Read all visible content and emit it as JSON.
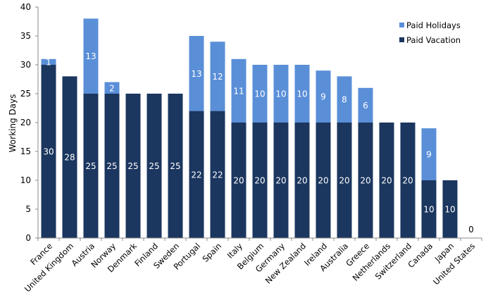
{
  "chart_data": {
    "type": "bar",
    "stacked": true,
    "ylabel": "Working Days",
    "xlabel": "",
    "ylim": [
      0,
      40
    ],
    "yticks": [
      0,
      5,
      10,
      15,
      20,
      25,
      30,
      35,
      40
    ],
    "grid": false,
    "legend_position": "top-right",
    "categories": [
      "France",
      "United Kingdom",
      "Austria",
      "Norway",
      "Denmark",
      "Finland",
      "Sweden",
      "Portugal",
      "Spain",
      "Italy",
      "Belgium",
      "Germany",
      "New Zealand",
      "Ireland",
      "Australia",
      "Greece",
      "Netherlands",
      "Switzerland",
      "Canada",
      "Japan",
      "United States"
    ],
    "series": [
      {
        "name": "Paid Vacation",
        "color": "#1b365f",
        "values": [
          30,
          28,
          25,
          25,
          25,
          25,
          25,
          22,
          22,
          20,
          20,
          20,
          20,
          20,
          20,
          20,
          20,
          20,
          10,
          10,
          0
        ]
      },
      {
        "name": "Paid Holidays",
        "color": "#5a8fd8",
        "values": [
          1,
          0,
          13,
          2,
          0,
          0,
          0,
          13,
          12,
          11,
          10,
          10,
          10,
          9,
          8,
          6,
          0,
          0,
          9,
          0,
          0
        ]
      }
    ]
  }
}
